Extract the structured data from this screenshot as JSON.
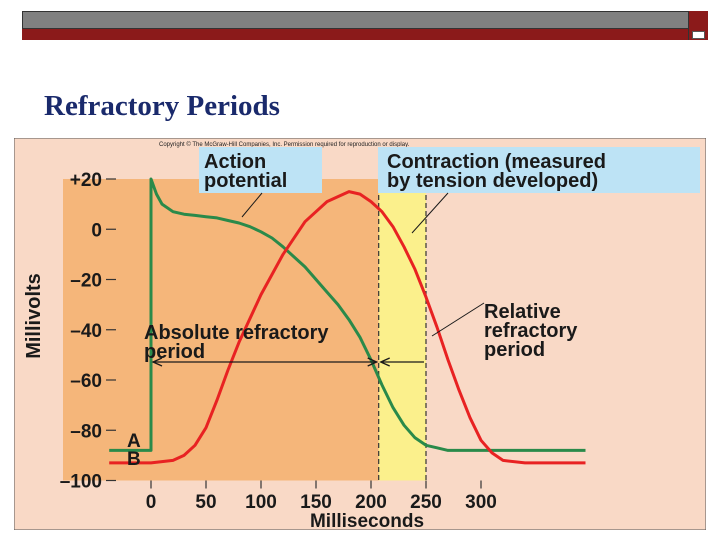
{
  "slide": {
    "title": "Refractory Periods",
    "copyright": "Copyright © The McGraw-Hill Companies, Inc. Permission required for reproduction or display."
  },
  "colors": {
    "background": "#f9d9c6",
    "absolute_refractory_fill": "#f5b67a",
    "relative_refractory_fill": "#fbf08c",
    "label_box": "#bde3f5",
    "action_potential": "#2a8a4a",
    "contraction": "#e82222",
    "title": "#1a2a6c"
  },
  "chart_data": {
    "type": "line",
    "title": "",
    "xlabel": "Milliseconds",
    "ylabel": "Millivolts",
    "xlim": [
      -80,
      440
    ],
    "ylim": [
      -100,
      20
    ],
    "xticks": [
      0,
      50,
      100,
      150,
      200,
      250,
      300
    ],
    "xtick_labels": [
      "0",
      "50",
      "100",
      "150",
      "200",
      "250",
      "300"
    ],
    "yticks": [
      20,
      0,
      -20,
      -40,
      -60,
      -80,
      -100
    ],
    "ytick_labels": [
      "+20",
      "0",
      "–20",
      "–40",
      "–60",
      "–80",
      "–100"
    ],
    "series": [
      {
        "name": "Action potential",
        "key": "A",
        "color": "#2a8a4a",
        "x": [
          -38,
          -5,
          0,
          0,
          5,
          10,
          20,
          30,
          40,
          50,
          60,
          70,
          80,
          90,
          100,
          110,
          120,
          130,
          140,
          150,
          160,
          170,
          180,
          190,
          200,
          210,
          220,
          230,
          240,
          250,
          260,
          270,
          300,
          350,
          395
        ],
        "y": [
          -88,
          -88,
          -88,
          20,
          14,
          10,
          7,
          6,
          5.5,
          5,
          4.5,
          3.5,
          2.5,
          1,
          -1,
          -3.5,
          -7,
          -11,
          -15,
          -20,
          -25,
          -30,
          -36,
          -43,
          -52,
          -62,
          -71,
          -78,
          -83,
          -86,
          -87,
          -88,
          -88,
          -88,
          -88
        ]
      },
      {
        "name": "Contraction (measured by tension developed)",
        "key": "B",
        "color": "#e82222",
        "x": [
          -38,
          0,
          20,
          30,
          40,
          50,
          60,
          70,
          80,
          100,
          120,
          140,
          160,
          170,
          180,
          190,
          200,
          210,
          220,
          230,
          240,
          250,
          260,
          270,
          280,
          290,
          300,
          310,
          320,
          340,
          395
        ],
        "y": [
          -93,
          -93,
          -92,
          -90,
          -86,
          -79,
          -68,
          -56,
          -45,
          -26,
          -10,
          3,
          11,
          13,
          15,
          14,
          11,
          7,
          1,
          -7,
          -16,
          -27,
          -39,
          -52,
          -64,
          -75,
          -84,
          -89,
          -92,
          -93,
          -93
        ]
      }
    ],
    "regions": [
      {
        "name": "Absolute refractory period",
        "x_start": 0,
        "x_end": 207
      },
      {
        "name": "Relative refractory period",
        "x_start": 207,
        "x_end": 250
      }
    ],
    "annotations": {
      "action_potential": [
        "Action",
        "potential"
      ],
      "contraction": [
        "Contraction (measured",
        "by tension developed)"
      ],
      "absolute_refractory": [
        "Absolute refractory",
        "period"
      ],
      "relative_refractory": [
        "Relative",
        "refractory",
        "period"
      ],
      "curve_key_a": "A",
      "curve_key_b": "B"
    },
    "grid": false,
    "legend": "none"
  }
}
